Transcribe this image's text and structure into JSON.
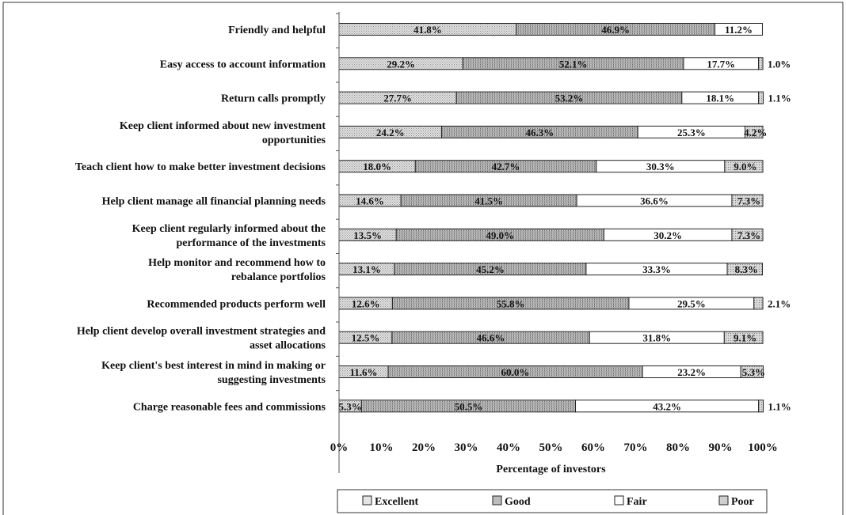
{
  "chart_data": {
    "type": "bar",
    "orientation": "horizontal",
    "stacked": true,
    "xlabel": "Percentage of investors",
    "xlim": [
      0,
      100
    ],
    "x_ticks": [
      "0%",
      "10%",
      "20%",
      "30%",
      "40%",
      "50%",
      "60%",
      "70%",
      "80%",
      "90%",
      "100%"
    ],
    "grid": false,
    "legend_position": "bottom",
    "categories": [
      [
        "Friendly and helpful"
      ],
      [
        "Easy access to account information"
      ],
      [
        "Return calls promptly"
      ],
      [
        "Keep client informed about new investment",
        "opportunities"
      ],
      [
        "Teach client how to make better investment decisions"
      ],
      [
        "Help client manage all financial planning needs"
      ],
      [
        "Keep client regularly informed about the",
        "performance of the investments"
      ],
      [
        "Help monitor and recommend how to",
        "rebalance portfolios"
      ],
      [
        "Recommended products perform well"
      ],
      [
        "Help client develop overall investment strategies and",
        "asset allocations"
      ],
      [
        "Keep client's best interest in mind in making or",
        "suggesting investments"
      ],
      [
        "Charge reasonable fees and commissions"
      ]
    ],
    "series": [
      {
        "name": "Excellent",
        "color": "#d6d6d6",
        "values": [
          41.8,
          29.2,
          27.7,
          24.2,
          18.0,
          14.6,
          13.5,
          13.1,
          12.6,
          12.5,
          11.6,
          5.3
        ],
        "labels": [
          "41.8%",
          "29.2%",
          "27.7%",
          "24.2%",
          "18.0%",
          "14.6%",
          "13.5%",
          "13.1%",
          "12.6%",
          "12.5%",
          "11.6%",
          "5.3%"
        ]
      },
      {
        "name": "Good",
        "color": "#b9b9b9",
        "values": [
          46.9,
          52.1,
          53.2,
          46.3,
          42.7,
          41.5,
          49.0,
          45.2,
          55.8,
          46.6,
          60.0,
          50.5
        ],
        "labels": [
          "46.9%",
          "52.1%",
          "53.2%",
          "46.3%",
          "42.7%",
          "41.5%",
          "49.0%",
          "45.2%",
          "55.8%",
          "46.6%",
          "60.0%",
          "50.5%"
        ]
      },
      {
        "name": "Fair",
        "color": "#ffffff",
        "values": [
          11.2,
          17.7,
          18.1,
          25.3,
          30.3,
          36.6,
          30.2,
          33.3,
          29.5,
          31.8,
          23.2,
          43.2
        ],
        "labels": [
          "11.2%",
          "17.7%",
          "18.1%",
          "25.3%",
          "30.3%",
          "36.6%",
          "30.2%",
          "33.3%",
          "29.5%",
          "31.8%",
          "23.2%",
          "43.2%"
        ]
      },
      {
        "name": "Poor",
        "color": "#cbcbcb",
        "values": [
          0,
          1.0,
          1.1,
          4.2,
          9.0,
          7.3,
          7.3,
          8.3,
          2.1,
          9.1,
          5.3,
          1.1
        ],
        "labels": [
          "",
          "1.0%",
          "1.1%",
          "4.2%",
          "9.0%",
          "7.3%",
          "7.3%",
          "8.3%",
          "2.1%",
          "9.1%",
          "5.3%",
          "1.1%"
        ]
      }
    ]
  }
}
